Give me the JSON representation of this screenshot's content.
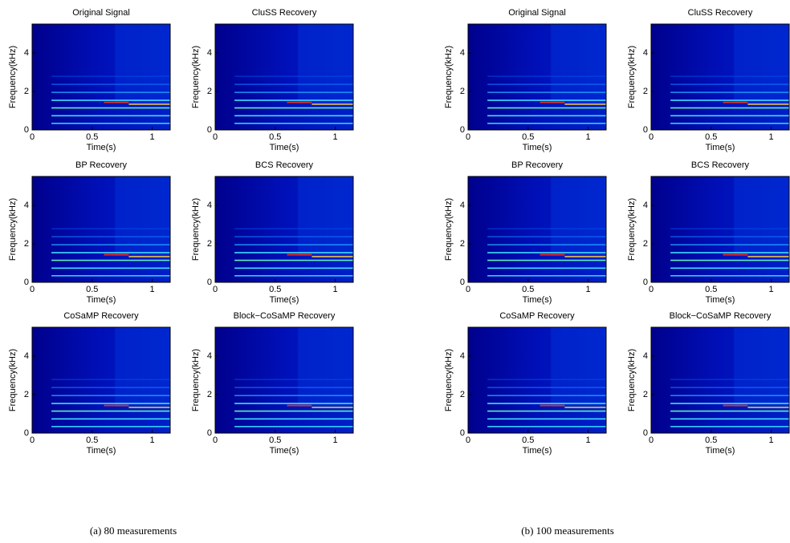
{
  "chart_data": [
    {
      "type": "heatmap",
      "title": "Original Signal",
      "xlabel": "Time(s)",
      "ylabel": "Frequency(kHz)",
      "xlim": [
        0,
        1.15
      ],
      "ylim": [
        0,
        5.5
      ],
      "xticks": [
        0,
        0.5,
        1
      ],
      "yticks": [
        0,
        2,
        4
      ]
    },
    {
      "type": "heatmap",
      "title": "CluSS Recovery",
      "xlabel": "Time(s)",
      "ylabel": "Frequency(kHz)",
      "xlim": [
        0,
        1.15
      ],
      "ylim": [
        0,
        5.5
      ],
      "xticks": [
        0,
        0.5,
        1
      ],
      "yticks": [
        0,
        2,
        4
      ]
    },
    {
      "type": "heatmap",
      "title": "BP Recovery",
      "xlabel": "Time(s)",
      "ylabel": "Frequency(kHz)",
      "xlim": [
        0,
        1.15
      ],
      "ylim": [
        0,
        5.5
      ],
      "xticks": [
        0,
        0.5,
        1
      ],
      "yticks": [
        0,
        2,
        4
      ]
    },
    {
      "type": "heatmap",
      "title": "BCS Recovery",
      "xlabel": "Time(s)",
      "ylabel": "Frequency(kHz)",
      "xlim": [
        0,
        1.15
      ],
      "ylim": [
        0,
        5.5
      ],
      "xticks": [
        0,
        0.5,
        1
      ],
      "yticks": [
        0,
        2,
        4
      ]
    },
    {
      "type": "heatmap",
      "title": "CoSaMP Recovery",
      "xlabel": "Time(s)",
      "ylabel": "Frequency(kHz)",
      "xlim": [
        0,
        1.15
      ],
      "ylim": [
        0,
        5.5
      ],
      "xticks": [
        0,
        0.5,
        1
      ],
      "yticks": [
        0,
        2,
        4
      ]
    },
    {
      "type": "heatmap",
      "title": "Block−CoSaMP Recovery",
      "xlabel": "Time(s)",
      "ylabel": "Frequency(kHz)",
      "xlim": [
        0,
        1.15
      ],
      "ylim": [
        0,
        5.5
      ],
      "xticks": [
        0,
        0.5,
        1
      ],
      "yticks": [
        0,
        2,
        4
      ]
    },
    {
      "type": "heatmap",
      "title": "Original Signal",
      "xlabel": "Time(s)",
      "ylabel": "Frequency(kHz)",
      "xlim": [
        0,
        1.15
      ],
      "ylim": [
        0,
        5.5
      ],
      "xticks": [
        0,
        0.5,
        1
      ],
      "yticks": [
        0,
        2,
        4
      ]
    },
    {
      "type": "heatmap",
      "title": "CluSS Recovery",
      "xlabel": "Time(s)",
      "ylabel": "Frequency(kHz)",
      "xlim": [
        0,
        1.15
      ],
      "ylim": [
        0,
        5.5
      ],
      "xticks": [
        0,
        0.5,
        1
      ],
      "yticks": [
        0,
        2,
        4
      ]
    },
    {
      "type": "heatmap",
      "title": "BP Recovery",
      "xlabel": "Time(s)",
      "ylabel": "Frequency(kHz)",
      "xlim": [
        0,
        1.15
      ],
      "ylim": [
        0,
        5.5
      ],
      "xticks": [
        0,
        0.5,
        1
      ],
      "yticks": [
        0,
        2,
        4
      ]
    },
    {
      "type": "heatmap",
      "title": "BCS Recovery",
      "xlabel": "Time(s)",
      "ylabel": "Frequency(kHz)",
      "xlim": [
        0,
        1.15
      ],
      "ylim": [
        0,
        5.5
      ],
      "xticks": [
        0,
        0.5,
        1
      ],
      "yticks": [
        0,
        2,
        4
      ]
    },
    {
      "type": "heatmap",
      "title": "CoSaMP Recovery",
      "xlabel": "Time(s)",
      "ylabel": "Frequency(kHz)",
      "xlim": [
        0,
        1.15
      ],
      "ylim": [
        0,
        5.5
      ],
      "xticks": [
        0,
        0.5,
        1
      ],
      "yticks": [
        0,
        2,
        4
      ]
    },
    {
      "type": "heatmap",
      "title": "Block−CoSaMP Recovery",
      "xlabel": "Time(s)",
      "ylabel": "Frequency(kHz)",
      "xlim": [
        0,
        1.15
      ],
      "ylim": [
        0,
        5.5
      ],
      "xticks": [
        0,
        0.5,
        1
      ],
      "yticks": [
        0,
        2,
        4
      ]
    }
  ],
  "captions": [
    "(a) 80 measurements",
    "(b) 100 measurements"
  ]
}
